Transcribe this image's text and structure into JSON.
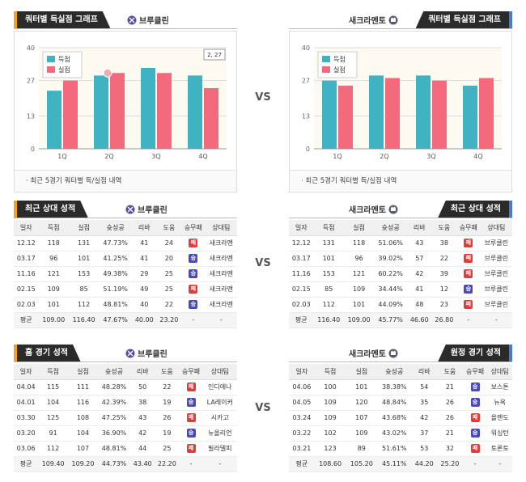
{
  "vs_label": "VS",
  "colors": {
    "score": "#3fb3c1",
    "conceded": "#f26a7b",
    "win": "#4a4ab8",
    "loss": "#e23b3b"
  },
  "quarter_graph": {
    "title": "쿼터별 득실점 그래프",
    "note": "최근 5경기 쿼터별 득/실점 내역",
    "legend": [
      "득점",
      "실점"
    ],
    "tooltip": "2, 27"
  },
  "recent": {
    "title": "최근 상대 성적"
  },
  "home_games": {
    "title": "홈 경기 성적"
  },
  "away_games": {
    "title": "원정 경기 성적"
  },
  "columns": [
    "일자",
    "득점",
    "실점",
    "슛성공",
    "리바",
    "도움",
    "승무패",
    "상대팀"
  ],
  "avg_label": "평균",
  "result_glyphs": {
    "win": "승",
    "loss": "패"
  },
  "teams": {
    "left": {
      "name": "브루클린",
      "logo": "brooklyn-nets-logo"
    },
    "right": {
      "name": "새크라멘토",
      "logo": "sacramento-kings-logo"
    }
  },
  "chart_data": [
    {
      "type": "bar",
      "team": "브루클린",
      "categories": [
        "1Q",
        "2Q",
        "3Q",
        "4Q"
      ],
      "series": [
        {
          "name": "득점",
          "values": [
            23,
            29,
            32,
            29
          ]
        },
        {
          "name": "실점",
          "values": [
            27,
            30,
            30,
            24
          ]
        }
      ],
      "yticks": [
        0,
        13,
        27,
        40
      ],
      "ylim": [
        0,
        40
      ],
      "grid": true,
      "legend": "top-left"
    },
    {
      "type": "bar",
      "team": "새크라멘토",
      "categories": [
        "1Q",
        "2Q",
        "3Q",
        "4Q"
      ],
      "series": [
        {
          "name": "득점",
          "values": [
            27,
            29,
            29,
            25
          ]
        },
        {
          "name": "실점",
          "values": [
            25,
            28,
            27,
            28
          ]
        }
      ],
      "yticks": [
        0,
        13,
        27,
        40
      ],
      "ylim": [
        0,
        40
      ],
      "grid": true,
      "legend": "top-left"
    }
  ],
  "tables": {
    "recent_left": {
      "rows": [
        [
          "12.12",
          "118",
          "131",
          "47.73%",
          "41",
          "24",
          "loss",
          "새크라멘"
        ],
        [
          "03.17",
          "96",
          "101",
          "41.25%",
          "41",
          "20",
          "win",
          "새크라멘"
        ],
        [
          "11.16",
          "121",
          "153",
          "49.38%",
          "29",
          "25",
          "win",
          "새크라멘"
        ],
        [
          "02.15",
          "109",
          "85",
          "51.19%",
          "49",
          "25",
          "loss",
          "새크라멘"
        ],
        [
          "02.03",
          "101",
          "112",
          "48.81%",
          "40",
          "22",
          "win",
          "새크라멘"
        ]
      ],
      "avg": [
        "109.00",
        "116.40",
        "47.67%",
        "40.00",
        "23.20",
        "-",
        "-"
      ]
    },
    "recent_right": {
      "rows": [
        [
          "12.12",
          "131",
          "118",
          "51.06%",
          "43",
          "38",
          "loss",
          "브루클린"
        ],
        [
          "03.17",
          "101",
          "96",
          "39.02%",
          "57",
          "22",
          "loss",
          "브루클린"
        ],
        [
          "11.16",
          "153",
          "121",
          "60.22%",
          "42",
          "39",
          "loss",
          "브루클린"
        ],
        [
          "02.15",
          "85",
          "109",
          "34.44%",
          "41",
          "12",
          "win",
          "브루클린"
        ],
        [
          "02.03",
          "112",
          "101",
          "44.09%",
          "48",
          "23",
          "loss",
          "브루클린"
        ]
      ],
      "avg": [
        "116.40",
        "109.00",
        "45.77%",
        "46.60",
        "26.80",
        "-",
        "-"
      ]
    },
    "home_left": {
      "rows": [
        [
          "04.04",
          "115",
          "111",
          "48.28%",
          "50",
          "22",
          "loss",
          "인디애나"
        ],
        [
          "04.01",
          "104",
          "116",
          "42.39%",
          "38",
          "19",
          "win",
          "LA레이커"
        ],
        [
          "03.30",
          "125",
          "108",
          "47.25%",
          "43",
          "26",
          "loss",
          "시카고"
        ],
        [
          "03.20",
          "91",
          "104",
          "36.90%",
          "42",
          "19",
          "win",
          "뉴올리언"
        ],
        [
          "03.06",
          "112",
          "107",
          "48.81%",
          "44",
          "25",
          "loss",
          "필라델피"
        ]
      ],
      "avg": [
        "109.40",
        "109.20",
        "44.73%",
        "43.40",
        "22.20",
        "-",
        "-"
      ]
    },
    "away_right": {
      "rows": [
        [
          "04.06",
          "100",
          "101",
          "38.38%",
          "54",
          "21",
          "win",
          "보스톤"
        ],
        [
          "04.05",
          "109",
          "120",
          "48.84%",
          "35",
          "26",
          "win",
          "뉴욕"
        ],
        [
          "03.24",
          "109",
          "107",
          "43.68%",
          "42",
          "26",
          "loss",
          "올랜도"
        ],
        [
          "03.22",
          "102",
          "109",
          "43.02%",
          "37",
          "21",
          "win",
          "워싱턴"
        ],
        [
          "03.21",
          "123",
          "89",
          "51.61%",
          "53",
          "32",
          "loss",
          "토론토"
        ]
      ],
      "avg": [
        "108.60",
        "105.20",
        "45.11%",
        "44.20",
        "25.20",
        "-",
        "-"
      ]
    }
  }
}
